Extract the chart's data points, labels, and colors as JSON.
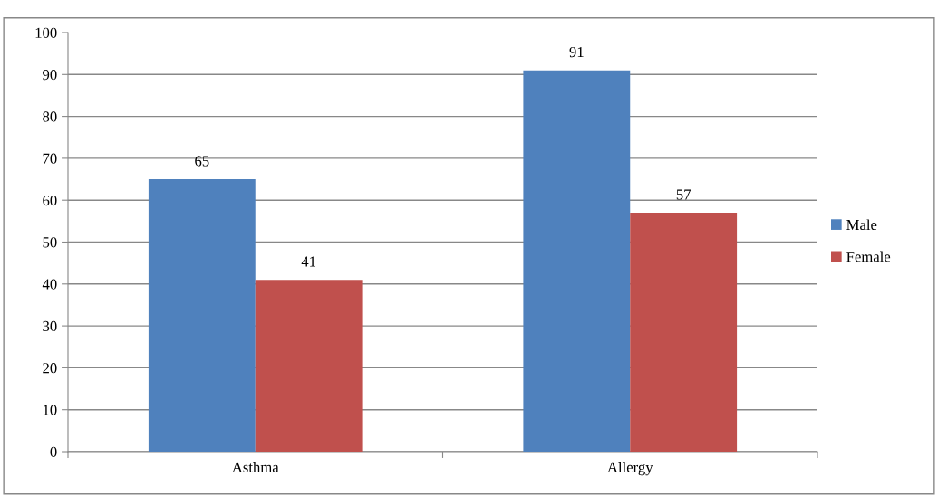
{
  "chart_data": {
    "type": "bar",
    "categories": [
      "Asthma",
      "Allergy"
    ],
    "series": [
      {
        "name": "Male",
        "color": "#4f81bd",
        "values": [
          65,
          91
        ]
      },
      {
        "name": "Female",
        "color": "#c0504d",
        "values": [
          41,
          57
        ]
      }
    ],
    "ylim": [
      0,
      100
    ],
    "yticks": [
      0,
      10,
      20,
      30,
      40,
      50,
      60,
      70,
      80,
      90,
      100
    ],
    "grid": "y",
    "legend": "right",
    "data_labels": true
  }
}
